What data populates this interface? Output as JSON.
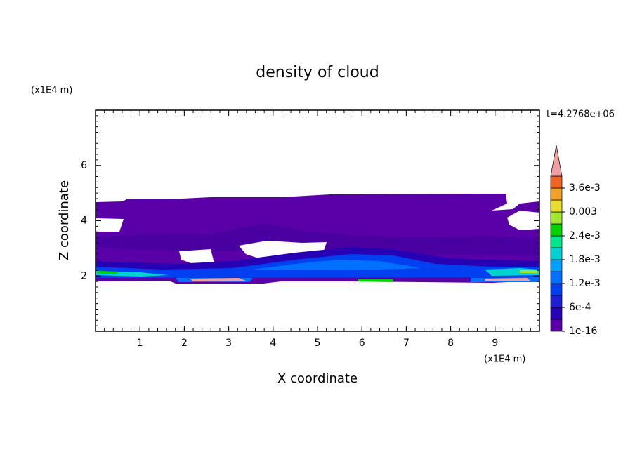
{
  "chart_data": {
    "type": "contour",
    "title": "density of cloud",
    "x_label": "X coordinate",
    "y_label": "Z coordinate",
    "x_unit": "(x1E4 m)",
    "y_unit": "(x1E4 m)",
    "time_label": "t=4.2768e+06",
    "xlim": [
      0,
      10
    ],
    "xticks": [
      1,
      2,
      3,
      4,
      5,
      6,
      7,
      8,
      9
    ],
    "ylim": [
      0,
      8
    ],
    "yticks": [
      2,
      4,
      6
    ],
    "colorbar": {
      "lim": [
        0,
        0.0039
      ],
      "colors": [
        "#5a00a8",
        "#2800b4",
        "#1e1ed2",
        "#0040f0",
        "#0070ff",
        "#00a0ff",
        "#00d2d2",
        "#00e68c",
        "#00d200",
        "#a0e632",
        "#e6dc32",
        "#f0a028",
        "#f06428"
      ],
      "over_color": "#f0a0a0",
      "ticks": [
        {
          "value": 1e-16,
          "label": "1e-16"
        },
        {
          "value": 0.0006,
          "label": "6e-4"
        },
        {
          "value": 0.0012,
          "label": "1.2e-3"
        },
        {
          "value": 0.0018,
          "label": "1.8e-3"
        },
        {
          "value": 0.0024,
          "label": "2.4e-3"
        },
        0.003,
        {
          "value": 0.0036,
          "label": "3.6e-3"
        }
      ]
    }
  }
}
